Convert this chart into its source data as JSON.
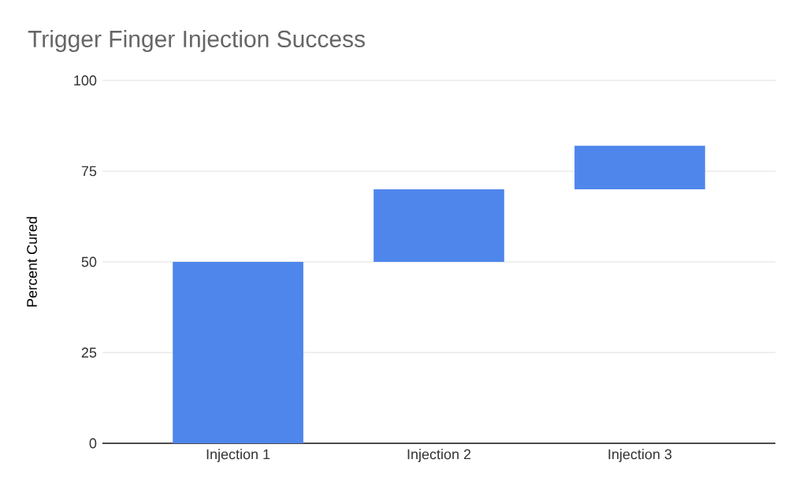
{
  "chart_data": {
    "type": "bar",
    "title": "Trigger Finger Injection Success",
    "ylabel": "Percent Cured",
    "categories": [
      "Injection 1",
      "Injection 2",
      "Injection 3"
    ],
    "values": [
      50,
      20,
      12
    ],
    "base": [
      0,
      50,
      70
    ],
    "color": "#4f86ec",
    "ylim": [
      0,
      100
    ],
    "yticks": [
      0,
      25,
      50,
      75,
      100
    ],
    "grid": "y"
  }
}
